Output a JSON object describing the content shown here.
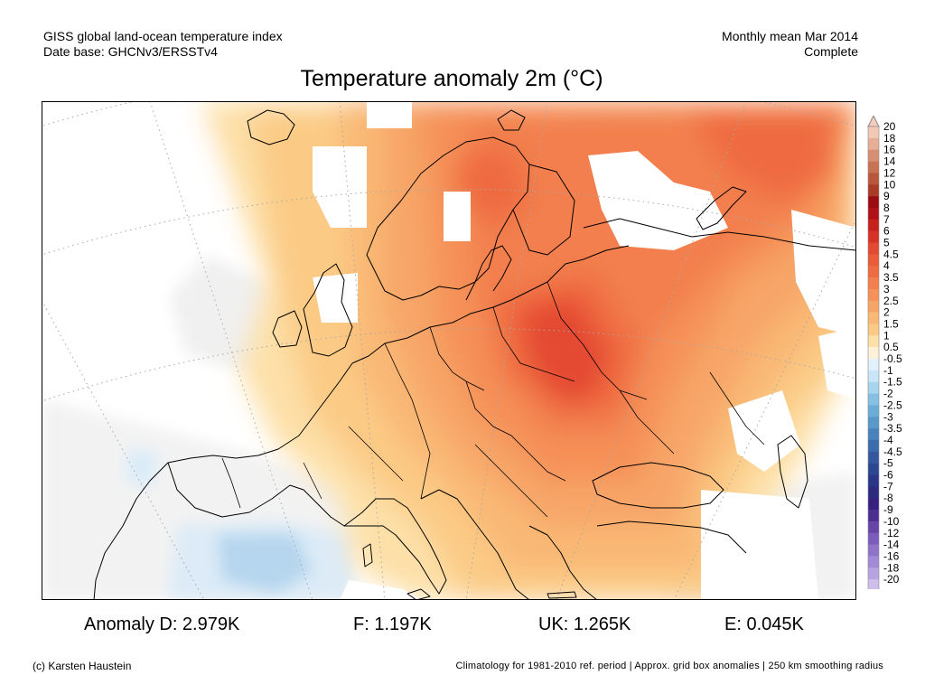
{
  "header": {
    "line1": "GISS global land-ocean temperature index",
    "line2": "Date base: GHCNv3/ERSSTv4",
    "right1": "Monthly mean Mar 2014",
    "right2": "Complete"
  },
  "title": "Temperature anomaly 2m (°C)",
  "legend": {
    "labels": [
      "20",
      "18",
      "16",
      "14",
      "12",
      "10",
      "9",
      "8",
      "7",
      "6",
      "5",
      "4.5",
      "4",
      "3.5",
      "3",
      "2.5",
      "2",
      "1.5",
      "1",
      "0.5",
      "-0.5",
      "-1",
      "-1.5",
      "-2",
      "-2.5",
      "-3",
      "-3.5",
      "-4",
      "-4.5",
      "-5",
      "-6",
      "-7",
      "-8",
      "-9",
      "-10",
      "-12",
      "-14",
      "-16",
      "-18",
      "-20"
    ],
    "colors": [
      "#f2c9b6",
      "#e6ae95",
      "#d78f72",
      "#c87254",
      "#b9573c",
      "#a93b27",
      "#9b0b10",
      "#b11116",
      "#c7201d",
      "#d83226",
      "#e44a32",
      "#eb5a39",
      "#ef6b40",
      "#f27f4d",
      "#f59159",
      "#f7a567",
      "#f9b874",
      "#fbcb86",
      "#fde0a8",
      "#fdf2d8",
      "#e2f1fb",
      "#c8e6f7",
      "#a7d5ee",
      "#86c1e3",
      "#6aaed8",
      "#5799cb",
      "#4782bc",
      "#3b6cad",
      "#33589f",
      "#2b4692",
      "#2a3687",
      "#2d2b80",
      "#372080",
      "#4c2d92",
      "#6745a8",
      "#7b5cbd",
      "#8f73cb",
      "#a38ad7",
      "#b8a3e2",
      "#cdbeec"
    ],
    "top_color": "#f4cdbb",
    "bottom_color": "#dcd2f2"
  },
  "map": {
    "ocean_color": "#ffffff",
    "land_neutral_color": "#f3f3f3",
    "coastline_color": "#000000",
    "grid_color": "#a8a8a8"
  },
  "stats": {
    "anomaly_d": "Anomaly D: 2.979K",
    "f": "F: 1.197K",
    "uk": "UK: 1.265K",
    "e": "E: 0.045K"
  },
  "footer": {
    "left": "(c) Karsten Haustein",
    "right": "Climatology for 1981-2010 ref. period | Approx. grid box anomalies | 250 km smoothing radius"
  }
}
